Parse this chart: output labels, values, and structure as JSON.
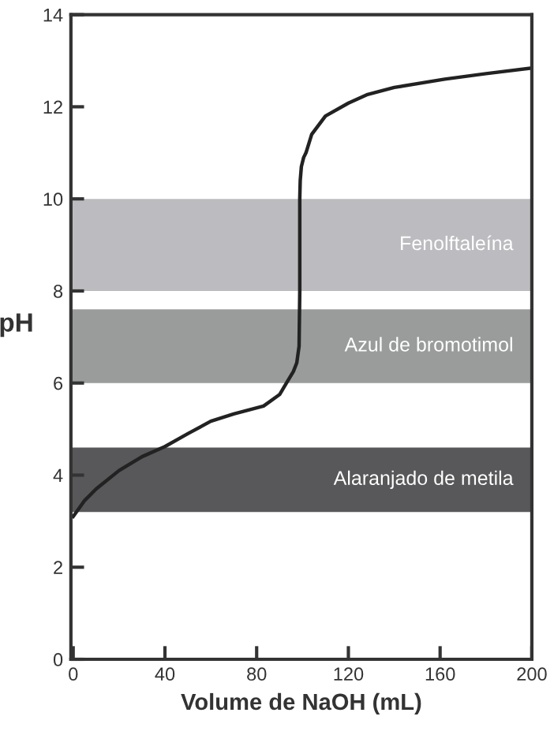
{
  "chart_data": {
    "type": "line",
    "xlabel": "Volume de NaOH (mL)",
    "ylabel": "pH",
    "x": [
      0,
      5,
      10,
      20,
      30,
      40,
      50,
      60,
      70,
      83,
      90,
      93,
      96,
      97.5,
      98.5,
      98.8,
      98.8,
      99,
      99.5,
      100.5,
      101.5,
      104,
      110,
      120,
      128,
      140,
      162,
      180,
      200
    ],
    "series": [
      {
        "color": "#222222",
        "values": [
          3.1,
          3.45,
          3.7,
          4.1,
          4.4,
          4.62,
          4.9,
          5.17,
          5.33,
          5.5,
          5.75,
          6.0,
          6.25,
          6.44,
          6.8,
          8,
          10,
          10.4,
          10.7,
          10.9,
          11.0,
          11.4,
          11.8,
          12.08,
          12.26,
          12.42,
          12.6,
          12.72,
          12.84
        ]
      }
    ],
    "xlim": [
      -1,
      200
    ],
    "ylim": [
      0,
      14
    ],
    "xticks": [
      0,
      40,
      80,
      120,
      160,
      200
    ],
    "yticks": [
      0,
      2,
      4,
      6,
      8,
      10,
      12,
      14
    ],
    "bands": [
      {
        "axis": "y",
        "from": 8,
        "to": 10,
        "label": "Fenolftaleína",
        "color": "#bcbcc0"
      },
      {
        "axis": "y",
        "from": 6,
        "to": 7.6,
        "label": "Azul de bromotimol",
        "color": "#9a9c9c"
      },
      {
        "axis": "y",
        "from": 3.2,
        "to": 4.6,
        "label": "Alaranjado de metila",
        "color": "#58585a"
      }
    ],
    "grid": false,
    "legend": false,
    "marker": "none",
    "line_style": "solid"
  }
}
